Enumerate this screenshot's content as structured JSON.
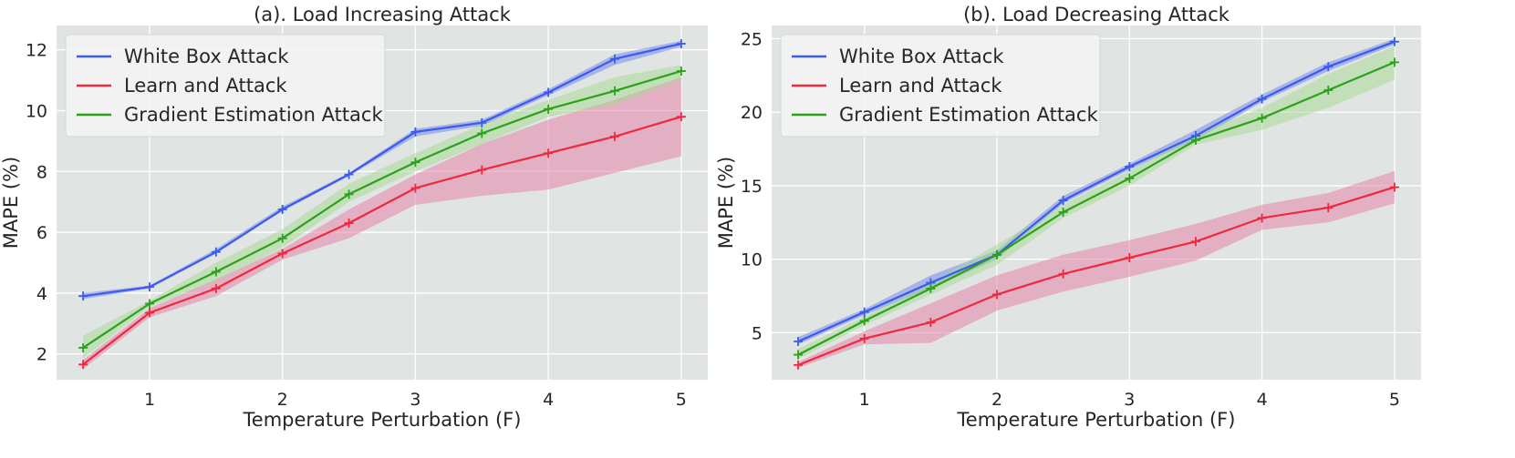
{
  "figure": {
    "background": "#ffffff",
    "plot_background": "#e0e5e3",
    "grid_color": "#ffffff"
  },
  "chart_data": [
    {
      "type": "line",
      "title": "(a). Load Increasing Attack",
      "xlabel": "Temperature Perturbation (F)",
      "ylabel": "MAPE (%)",
      "xlim": [
        0.3,
        5.2
      ],
      "ylim": [
        1.15,
        12.8
      ],
      "xticks": [
        1,
        2,
        3,
        4,
        5
      ],
      "yticks": [
        2,
        4,
        6,
        8,
        10,
        12
      ],
      "grid": true,
      "legend_position": "upper-left",
      "x": [
        0.5,
        1,
        1.5,
        2,
        2.5,
        3,
        3.5,
        4,
        4.5,
        5
      ],
      "series": [
        {
          "name": "White Box Attack",
          "color": "#3b5bf0",
          "band_color": "#6f82ee",
          "values": [
            3.9,
            4.2,
            5.35,
            6.75,
            7.9,
            9.3,
            9.6,
            10.6,
            11.7,
            12.2
          ],
          "lower": [
            3.8,
            4.15,
            5.3,
            6.7,
            7.85,
            9.15,
            9.5,
            10.5,
            11.5,
            12.1
          ],
          "upper": [
            4.0,
            4.25,
            5.45,
            6.85,
            7.95,
            9.4,
            9.7,
            10.7,
            11.85,
            12.3
          ]
        },
        {
          "name": "Learn and Attack",
          "color": "#f0283f",
          "band_color": "#e57aa2",
          "values": [
            1.65,
            3.35,
            4.15,
            5.3,
            6.3,
            7.45,
            8.05,
            8.6,
            9.15,
            9.8
          ],
          "lower": [
            1.5,
            3.2,
            3.9,
            5.1,
            5.8,
            6.9,
            7.2,
            7.4,
            7.95,
            8.5
          ],
          "upper": [
            1.8,
            3.5,
            4.45,
            5.45,
            6.75,
            7.9,
            8.9,
            9.7,
            10.35,
            11.1
          ]
        },
        {
          "name": "Gradient Estimation Attack",
          "color": "#2ca11a",
          "band_color": "#a4d98f",
          "values": [
            2.2,
            3.65,
            4.7,
            5.8,
            7.25,
            8.3,
            9.25,
            10.05,
            10.65,
            11.3
          ],
          "lower": [
            1.85,
            3.55,
            4.4,
            5.5,
            7.0,
            8.0,
            8.9,
            9.8,
            10.2,
            11.0
          ],
          "upper": [
            2.6,
            3.75,
            5.0,
            6.1,
            7.6,
            8.6,
            9.55,
            10.35,
            11.1,
            11.5
          ]
        }
      ]
    },
    {
      "type": "line",
      "title": "(b). Load Decreasing Attack",
      "xlabel": "Temperature Perturbation (F)",
      "ylabel": "MAPE (%)",
      "xlim": [
        0.3,
        5.2
      ],
      "ylim": [
        1.8,
        25.9
      ],
      "xticks": [
        1,
        2,
        3,
        4,
        5
      ],
      "yticks": [
        5,
        10,
        15,
        20,
        25
      ],
      "grid": true,
      "legend_position": "upper-left",
      "x": [
        0.5,
        1,
        1.5,
        2,
        2.5,
        3,
        3.5,
        4,
        4.5,
        5
      ],
      "series": [
        {
          "name": "White Box Attack",
          "color": "#3b5bf0",
          "band_color": "#6f82ee",
          "values": [
            4.4,
            6.4,
            8.4,
            10.3,
            14.0,
            16.3,
            18.4,
            20.9,
            23.1,
            24.8
          ],
          "lower": [
            4.2,
            6.2,
            8.0,
            10.0,
            13.8,
            16.1,
            18.1,
            20.7,
            22.8,
            24.6
          ],
          "upper": [
            4.7,
            6.6,
            8.9,
            10.6,
            14.3,
            16.5,
            18.8,
            21.2,
            23.4,
            25.0
          ]
        },
        {
          "name": "Learn and Attack",
          "color": "#f0283f",
          "band_color": "#e57aa2",
          "values": [
            2.8,
            4.6,
            5.7,
            7.6,
            9.0,
            10.1,
            11.2,
            12.8,
            13.5,
            14.9
          ],
          "lower": [
            2.6,
            4.2,
            4.3,
            6.5,
            7.8,
            8.8,
            9.9,
            12.0,
            12.5,
            13.8
          ],
          "upper": [
            3.0,
            5.1,
            7.0,
            8.9,
            10.3,
            11.3,
            12.4,
            13.7,
            14.5,
            16.0
          ]
        },
        {
          "name": "Gradient Estimation Attack",
          "color": "#2ca11a",
          "band_color": "#a4d98f",
          "values": [
            3.5,
            5.8,
            8.0,
            10.3,
            13.2,
            15.5,
            18.1,
            19.6,
            21.5,
            23.4
          ],
          "lower": [
            3.2,
            5.5,
            7.6,
            9.6,
            12.8,
            15.0,
            17.8,
            18.8,
            20.3,
            22.2
          ],
          "upper": [
            3.9,
            6.1,
            8.4,
            11.0,
            13.7,
            16.0,
            18.5,
            20.3,
            22.6,
            24.5
          ]
        }
      ]
    }
  ]
}
